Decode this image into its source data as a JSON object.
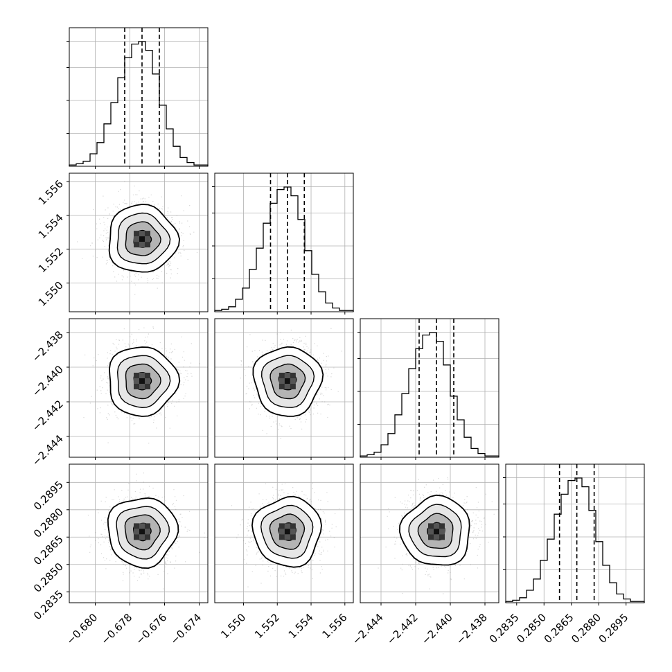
{
  "chart_data": {
    "type": "corner",
    "title": "",
    "parameters": [
      {
        "index": 0,
        "axis_range": [
          -0.6815,
          -0.6735
        ],
        "median": -0.6773,
        "quantile_lo": -0.6783,
        "quantile_hi": -0.6763,
        "std": 0.001,
        "ticks": [
          -0.68,
          -0.678,
          -0.676,
          -0.674
        ],
        "tick_labels": [
          "−0.680",
          "−0.678",
          "−0.676",
          "−0.674"
        ]
      },
      {
        "index": 1,
        "axis_range": [
          1.5483,
          1.5565
        ],
        "median": 1.5526,
        "quantile_lo": 1.5516,
        "quantile_hi": 1.5536,
        "std": 0.001,
        "ticks": [
          1.55,
          1.552,
          1.554,
          1.556
        ],
        "tick_labels": [
          "1.550",
          "1.552",
          "1.554",
          "1.556"
        ]
      },
      {
        "index": 2,
        "axis_range": [
          -2.4452,
          -2.4372
        ],
        "median": -2.4408,
        "quantile_lo": -2.4418,
        "quantile_hi": -2.4398,
        "std": 0.001,
        "ticks": [
          -2.444,
          -2.442,
          -2.44,
          -2.438
        ],
        "tick_labels": [
          "−2.444",
          "−2.442",
          "−2.440",
          "−2.438"
        ]
      },
      {
        "index": 3,
        "axis_range": [
          0.2829,
          0.2905
        ],
        "median": 0.2868,
        "quantile_lo": 0.28585,
        "quantile_hi": 0.28775,
        "std": 0.00095,
        "ticks": [
          0.2835,
          0.285,
          0.2865,
          0.288,
          0.2895
        ],
        "tick_labels": [
          "0.2835",
          "0.2850",
          "0.2865",
          "0.2880",
          "0.2895"
        ]
      }
    ],
    "histogram": {
      "bins": 20,
      "style": "step",
      "quantile_lines": "dashed",
      "relative_bin_heights": [
        0.01,
        0.02,
        0.04,
        0.1,
        0.19,
        0.34,
        0.51,
        0.71,
        0.87,
        0.98,
        1.0,
        0.93,
        0.74,
        0.49,
        0.3,
        0.16,
        0.07,
        0.03,
        0.01,
        0.01
      ]
    },
    "density_2d": {
      "contour_levels": 4,
      "scatter_points": true,
      "grid": true
    },
    "grid": true,
    "legend": "none"
  }
}
